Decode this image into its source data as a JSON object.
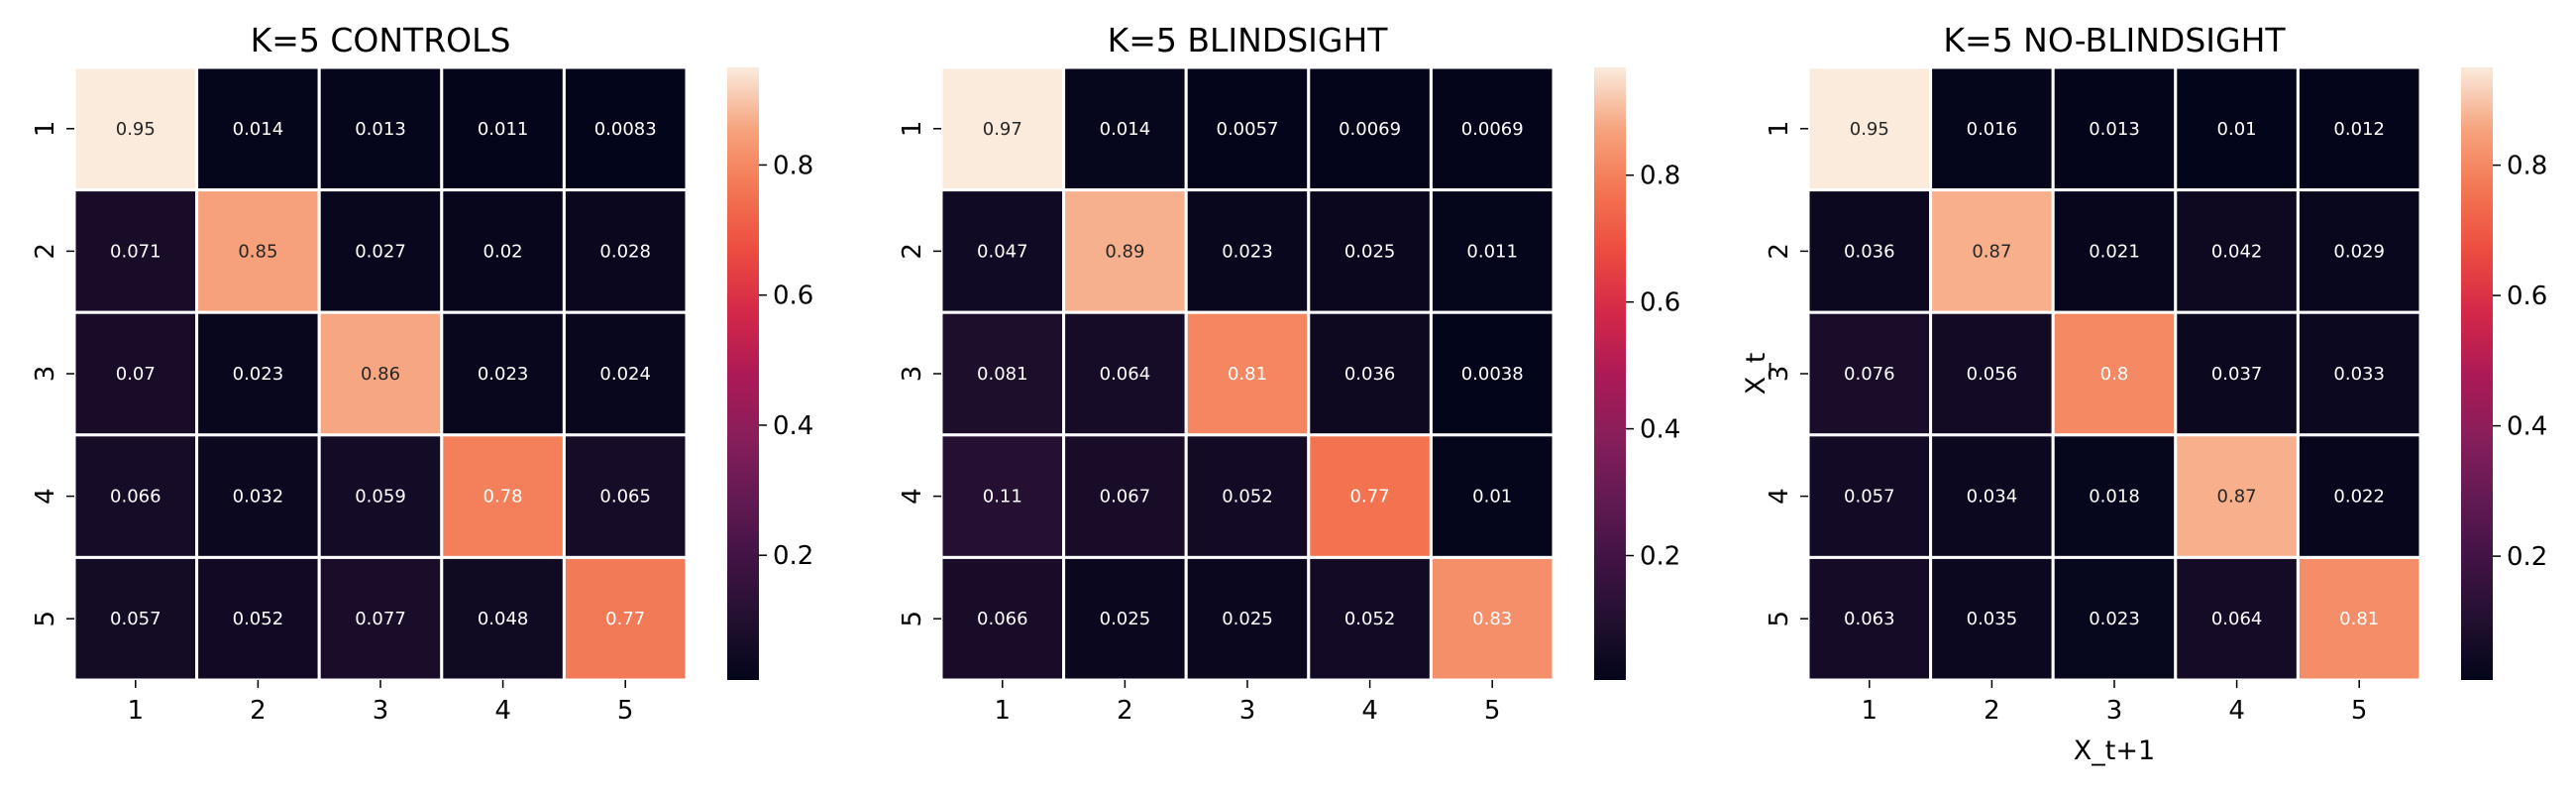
{
  "chart_data": [
    {
      "type": "heatmap",
      "title": "K=5 CONTROLS",
      "xlabel": "",
      "ylabel": "",
      "x_ticks": [
        "1",
        "2",
        "3",
        "4",
        "5"
      ],
      "y_ticks": [
        "1",
        "2",
        "3",
        "4",
        "5"
      ],
      "values": [
        [
          0.95,
          0.014,
          0.013,
          0.011,
          0.0083
        ],
        [
          0.071,
          0.85,
          0.027,
          0.02,
          0.028
        ],
        [
          0.07,
          0.023,
          0.86,
          0.023,
          0.024
        ],
        [
          0.066,
          0.032,
          0.059,
          0.78,
          0.065
        ],
        [
          0.057,
          0.052,
          0.077,
          0.048,
          0.77
        ]
      ],
      "labels": [
        [
          "0.95",
          "0.014",
          "0.013",
          "0.011",
          "0.0083"
        ],
        [
          "0.071",
          "0.85",
          "0.027",
          "0.02",
          "0.028"
        ],
        [
          "0.07",
          "0.023",
          "0.86",
          "0.023",
          "0.024"
        ],
        [
          "0.066",
          "0.032",
          "0.059",
          "0.78",
          "0.065"
        ],
        [
          "0.057",
          "0.052",
          "0.077",
          "0.048",
          "0.77"
        ]
      ],
      "colorbar": {
        "min": 0.0083,
        "max": 0.95,
        "ticks": [
          0.2,
          0.4,
          0.6,
          0.8
        ],
        "tick_labels": [
          "0.2",
          "0.4",
          "0.6",
          "0.8"
        ]
      }
    },
    {
      "type": "heatmap",
      "title": "K=5 BLINDSIGHT",
      "xlabel": "",
      "ylabel": "",
      "x_ticks": [
        "1",
        "2",
        "3",
        "4",
        "5"
      ],
      "y_ticks": [
        "1",
        "2",
        "3",
        "4",
        "5"
      ],
      "values": [
        [
          0.97,
          0.014,
          0.0057,
          0.0069,
          0.0069
        ],
        [
          0.047,
          0.89,
          0.023,
          0.025,
          0.011
        ],
        [
          0.081,
          0.064,
          0.81,
          0.036,
          0.0038
        ],
        [
          0.11,
          0.067,
          0.052,
          0.77,
          0.01
        ],
        [
          0.066,
          0.025,
          0.025,
          0.052,
          0.83
        ]
      ],
      "labels": [
        [
          "0.97",
          "0.014",
          "0.0057",
          "0.0069",
          "0.0069"
        ],
        [
          "0.047",
          "0.89",
          "0.023",
          "0.025",
          "0.011"
        ],
        [
          "0.081",
          "0.064",
          "0.81",
          "0.036",
          "0.0038"
        ],
        [
          "0.11",
          "0.067",
          "0.052",
          "0.77",
          "0.01"
        ],
        [
          "0.066",
          "0.025",
          "0.025",
          "0.052",
          "0.83"
        ]
      ],
      "colorbar": {
        "min": 0.0038,
        "max": 0.97,
        "ticks": [
          0.2,
          0.4,
          0.6,
          0.8
        ],
        "tick_labels": [
          "0.2",
          "0.4",
          "0.6",
          "0.8"
        ]
      }
    },
    {
      "type": "heatmap",
      "title": "K=5 NO-BLINDSIGHT",
      "xlabel": "X_t+1",
      "ylabel": "X_t",
      "x_ticks": [
        "1",
        "2",
        "3",
        "4",
        "5"
      ],
      "y_ticks": [
        "1",
        "2",
        "3",
        "4",
        "5"
      ],
      "values": [
        [
          0.95,
          0.016,
          0.013,
          0.01,
          0.012
        ],
        [
          0.036,
          0.87,
          0.021,
          0.042,
          0.029
        ],
        [
          0.076,
          0.056,
          0.8,
          0.037,
          0.033
        ],
        [
          0.057,
          0.034,
          0.018,
          0.87,
          0.022
        ],
        [
          0.063,
          0.035,
          0.023,
          0.064,
          0.81
        ]
      ],
      "labels": [
        [
          "0.95",
          "0.016",
          "0.013",
          "0.01",
          "0.012"
        ],
        [
          "0.036",
          "0.87",
          "0.021",
          "0.042",
          "0.029"
        ],
        [
          "0.076",
          "0.056",
          "0.8",
          "0.037",
          "0.033"
        ],
        [
          "0.057",
          "0.034",
          "0.018",
          "0.87",
          "0.022"
        ],
        [
          "0.063",
          "0.035",
          "0.023",
          "0.064",
          "0.81"
        ]
      ],
      "colorbar": {
        "min": 0.01,
        "max": 0.95,
        "ticks": [
          0.2,
          0.4,
          0.6,
          0.8
        ],
        "tick_labels": [
          "0.2",
          "0.4",
          "0.6",
          "0.8"
        ]
      }
    }
  ],
  "colormap": "rocket"
}
